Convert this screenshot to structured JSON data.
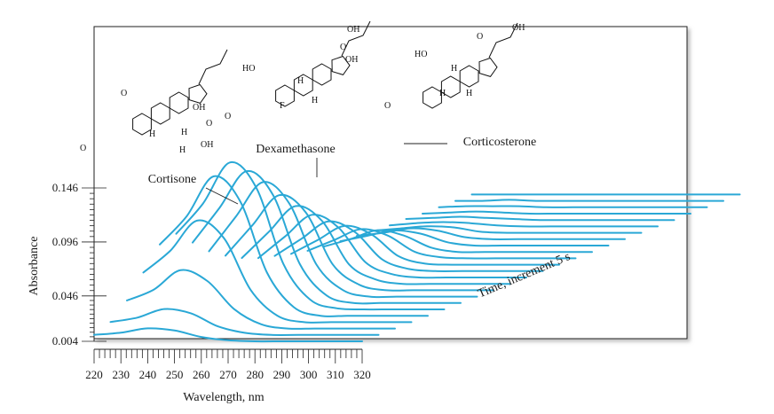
{
  "chart_data": {
    "type": "line",
    "xlabel": "Wavelength, nm",
    "ylabel": "Absorbance",
    "time_label": "Time, increment 5 s",
    "x_ticks": [
      220,
      230,
      240,
      250,
      260,
      270,
      280,
      290,
      300,
      310,
      320
    ],
    "y_ticks": [
      0.004,
      0.046,
      0.096,
      0.146
    ],
    "xlim": [
      220,
      320
    ],
    "ylim": [
      0.004,
      0.146
    ],
    "time_increment_s": 5,
    "trace_color": "#2aa8d6",
    "peaks": [
      {
        "name": "Cortisone",
        "wavelength": 238
      },
      {
        "name": "Dexamethasone",
        "wavelength": 239
      },
      {
        "name": "Corticosterone",
        "wavelength": 240
      }
    ],
    "series": [
      {
        "x": [
          220,
          230,
          240,
          250,
          260,
          270,
          280,
          290,
          300,
          310,
          320
        ],
        "values": [
          0.01,
          0.012,
          0.016,
          0.014,
          0.008,
          0.005,
          0.004,
          0.004,
          0.004,
          0.004,
          0.004
        ]
      },
      {
        "x": [
          220,
          230,
          240,
          250,
          260,
          270,
          280,
          290,
          300,
          310,
          320
        ],
        "values": [
          0.016,
          0.02,
          0.028,
          0.024,
          0.012,
          0.006,
          0.004,
          0.004,
          0.004,
          0.004,
          0.004
        ]
      },
      {
        "x": [
          220,
          230,
          240,
          250,
          260,
          270,
          280,
          290,
          300,
          310,
          320
        ],
        "values": [
          0.03,
          0.04,
          0.058,
          0.048,
          0.022,
          0.008,
          0.004,
          0.004,
          0.004,
          0.004,
          0.004
        ]
      },
      {
        "x": [
          220,
          230,
          240,
          250,
          260,
          270,
          280,
          290,
          300,
          310,
          320
        ],
        "values": [
          0.05,
          0.07,
          0.098,
          0.082,
          0.034,
          0.01,
          0.004,
          0.004,
          0.004,
          0.004,
          0.004
        ]
      },
      {
        "x": [
          220,
          230,
          240,
          250,
          260,
          270,
          280,
          290,
          300,
          310,
          320
        ],
        "values": [
          0.07,
          0.096,
          0.133,
          0.11,
          0.044,
          0.012,
          0.004,
          0.004,
          0.004,
          0.004,
          0.004
        ]
      },
      {
        "x": [
          220,
          230,
          240,
          250,
          260,
          270,
          280,
          290,
          300,
          310,
          320
        ],
        "values": [
          0.074,
          0.102,
          0.14,
          0.116,
          0.046,
          0.013,
          0.005,
          0.004,
          0.004,
          0.004,
          0.004
        ]
      },
      {
        "x": [
          220,
          230,
          240,
          250,
          260,
          270,
          280,
          290,
          300,
          310,
          320
        ],
        "values": [
          0.06,
          0.092,
          0.126,
          0.104,
          0.04,
          0.011,
          0.004,
          0.004,
          0.004,
          0.004,
          0.004
        ]
      },
      {
        "x": [
          220,
          230,
          240,
          250,
          260,
          270,
          280,
          290,
          300,
          310,
          320
        ],
        "values": [
          0.046,
          0.078,
          0.11,
          0.09,
          0.034,
          0.01,
          0.004,
          0.004,
          0.004,
          0.004,
          0.004
        ]
      },
      {
        "x": [
          220,
          230,
          240,
          250,
          260,
          270,
          280,
          290,
          300,
          310,
          320
        ],
        "values": [
          0.036,
          0.064,
          0.092,
          0.076,
          0.028,
          0.009,
          0.004,
          0.004,
          0.004,
          0.004,
          0.004
        ]
      },
      {
        "x": [
          220,
          230,
          240,
          250,
          260,
          270,
          280,
          290,
          300,
          310,
          320
        ],
        "values": [
          0.028,
          0.052,
          0.076,
          0.062,
          0.022,
          0.008,
          0.004,
          0.004,
          0.004,
          0.004,
          0.004
        ]
      },
      {
        "x": [
          220,
          230,
          240,
          250,
          260,
          270,
          280,
          290,
          300,
          310,
          320
        ],
        "values": [
          0.022,
          0.042,
          0.062,
          0.05,
          0.018,
          0.007,
          0.004,
          0.004,
          0.004,
          0.004,
          0.004
        ]
      },
      {
        "x": [
          220,
          230,
          240,
          250,
          260,
          270,
          280,
          290,
          300,
          310,
          320
        ],
        "values": [
          0.018,
          0.034,
          0.05,
          0.04,
          0.015,
          0.006,
          0.004,
          0.004,
          0.004,
          0.004,
          0.004
        ]
      },
      {
        "x": [
          220,
          230,
          240,
          250,
          260,
          270,
          280,
          290,
          300,
          310,
          320
        ],
        "values": [
          0.014,
          0.027,
          0.04,
          0.032,
          0.012,
          0.005,
          0.004,
          0.004,
          0.004,
          0.004,
          0.004
        ]
      },
      {
        "x": [
          220,
          230,
          240,
          250,
          260,
          270,
          280,
          290,
          300,
          310,
          320
        ],
        "values": [
          0.011,
          0.021,
          0.031,
          0.025,
          0.01,
          0.005,
          0.004,
          0.004,
          0.004,
          0.004,
          0.004
        ]
      },
      {
        "x": [
          220,
          230,
          240,
          250,
          260,
          270,
          280,
          290,
          300,
          310,
          320
        ],
        "values": [
          0.009,
          0.016,
          0.024,
          0.019,
          0.008,
          0.004,
          0.004,
          0.004,
          0.004,
          0.004,
          0.004
        ]
      },
      {
        "x": [
          220,
          230,
          240,
          250,
          260,
          270,
          280,
          290,
          300,
          310,
          320
        ],
        "values": [
          0.008,
          0.013,
          0.018,
          0.015,
          0.007,
          0.004,
          0.004,
          0.004,
          0.004,
          0.004,
          0.004
        ]
      },
      {
        "x": [
          220,
          230,
          240,
          250,
          260,
          270,
          280,
          290,
          300,
          310,
          320
        ],
        "values": [
          0.007,
          0.01,
          0.014,
          0.012,
          0.006,
          0.004,
          0.004,
          0.004,
          0.004,
          0.004,
          0.004
        ]
      },
      {
        "x": [
          220,
          230,
          240,
          250,
          260,
          270,
          280,
          290,
          300,
          310,
          320
        ],
        "values": [
          0.006,
          0.008,
          0.01,
          0.009,
          0.005,
          0.004,
          0.004,
          0.004,
          0.004,
          0.004,
          0.004
        ]
      },
      {
        "x": [
          220,
          230,
          240,
          250,
          260,
          270,
          280,
          290,
          300,
          310,
          320
        ],
        "values": [
          0.005,
          0.007,
          0.008,
          0.007,
          0.005,
          0.004,
          0.004,
          0.004,
          0.004,
          0.004,
          0.004
        ]
      },
      {
        "x": [
          220,
          230,
          240,
          250,
          260,
          270,
          280,
          290,
          300,
          310,
          320
        ],
        "values": [
          0.005,
          0.006,
          0.007,
          0.006,
          0.005,
          0.004,
          0.004,
          0.004,
          0.004,
          0.004,
          0.004
        ]
      },
      {
        "x": [
          220,
          230,
          240,
          250,
          260,
          270,
          280,
          290,
          300,
          310,
          320
        ],
        "values": [
          0.004,
          0.005,
          0.006,
          0.005,
          0.004,
          0.004,
          0.004,
          0.004,
          0.004,
          0.004,
          0.004
        ]
      },
      {
        "x": [
          220,
          230,
          240,
          250,
          260,
          270,
          280,
          290,
          300,
          310,
          320
        ],
        "values": [
          0.004,
          0.005,
          0.005,
          0.005,
          0.004,
          0.004,
          0.004,
          0.004,
          0.004,
          0.004,
          0.004
        ]
      },
      {
        "x": [
          220,
          230,
          240,
          250,
          260,
          270,
          280,
          290,
          300,
          310,
          320
        ],
        "values": [
          0.004,
          0.004,
          0.005,
          0.004,
          0.004,
          0.004,
          0.004,
          0.004,
          0.004,
          0.004,
          0.004
        ]
      },
      {
        "x": [
          220,
          230,
          240,
          250,
          260,
          270,
          280,
          290,
          300,
          310,
          320
        ],
        "values": [
          0.004,
          0.004,
          0.004,
          0.004,
          0.004,
          0.004,
          0.004,
          0.004,
          0.004,
          0.004,
          0.004
        ]
      }
    ],
    "structures": [
      {
        "name": "Cortisone",
        "atoms": [
          "OH",
          "O",
          "O",
          "OH",
          "H",
          "H",
          "H",
          "O"
        ]
      },
      {
        "name": "Dexamethasone",
        "atoms": [
          "OH",
          "O",
          "OH",
          "HO",
          "H",
          "F",
          "H",
          "O"
        ]
      },
      {
        "name": "Corticosterone",
        "atoms": [
          "OH",
          "O",
          "HO",
          "H",
          "H",
          "H",
          "O"
        ]
      }
    ]
  }
}
